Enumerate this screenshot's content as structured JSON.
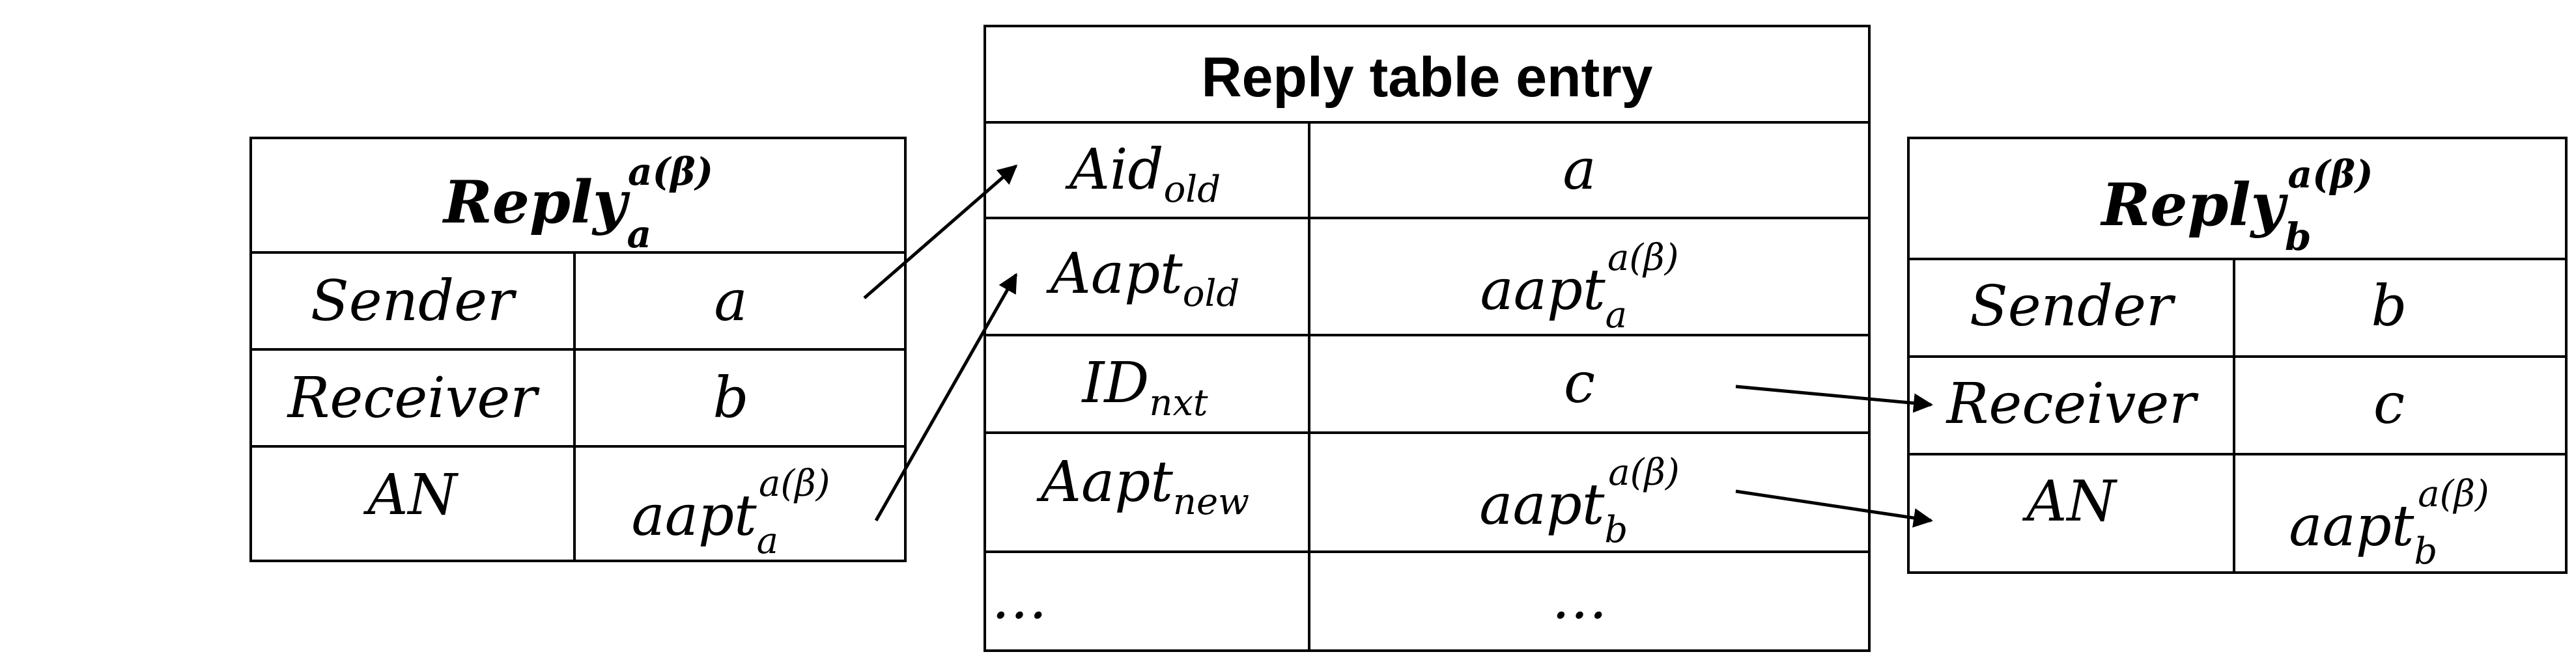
{
  "left_table": {
    "title_base": "Reply",
    "title_sub": "a",
    "title_sup": "a(β)",
    "rows": [
      {
        "field": "Sender",
        "value": "a"
      },
      {
        "field": "Receiver",
        "value": "b"
      },
      {
        "field": "AN",
        "value_base": "aapt",
        "value_sub": "a",
        "value_sup": "a(β)"
      }
    ]
  },
  "center_table": {
    "title": "Reply table entry",
    "rows": [
      {
        "field_base": "Aid",
        "field_sub": "old",
        "value": "a"
      },
      {
        "field_base": "Aapt",
        "field_sub": "old",
        "value_base": "aapt",
        "value_sub": "a",
        "value_sup": "a(β)"
      },
      {
        "field_base": "ID",
        "field_sub": "nxt",
        "value": "c"
      },
      {
        "field_base": "Aapt",
        "field_sub": "new",
        "value_base": "aapt",
        "value_sub": "b",
        "value_sup": "a(β)"
      },
      {
        "field": "…",
        "value": "…"
      }
    ]
  },
  "right_table": {
    "title_base": "Reply",
    "title_sub": "b",
    "title_sup": "a(β)",
    "rows": [
      {
        "field": "Sender",
        "value": "b"
      },
      {
        "field": "Receiver",
        "value": "c"
      },
      {
        "field": "AN",
        "value_base": "aapt",
        "value_sub": "b",
        "value_sup": "a(β)"
      }
    ]
  },
  "arrows": [
    {
      "from": "left_table.Sender.value",
      "to": "center_table.Aid_old"
    },
    {
      "from": "left_table.AN.value",
      "to": "center_table.Aapt_old"
    },
    {
      "from": "center_table.ID_nxt.value",
      "to": "right_table.Receiver"
    },
    {
      "from": "center_table.Aapt_new.value",
      "to": "right_table.AN"
    }
  ]
}
